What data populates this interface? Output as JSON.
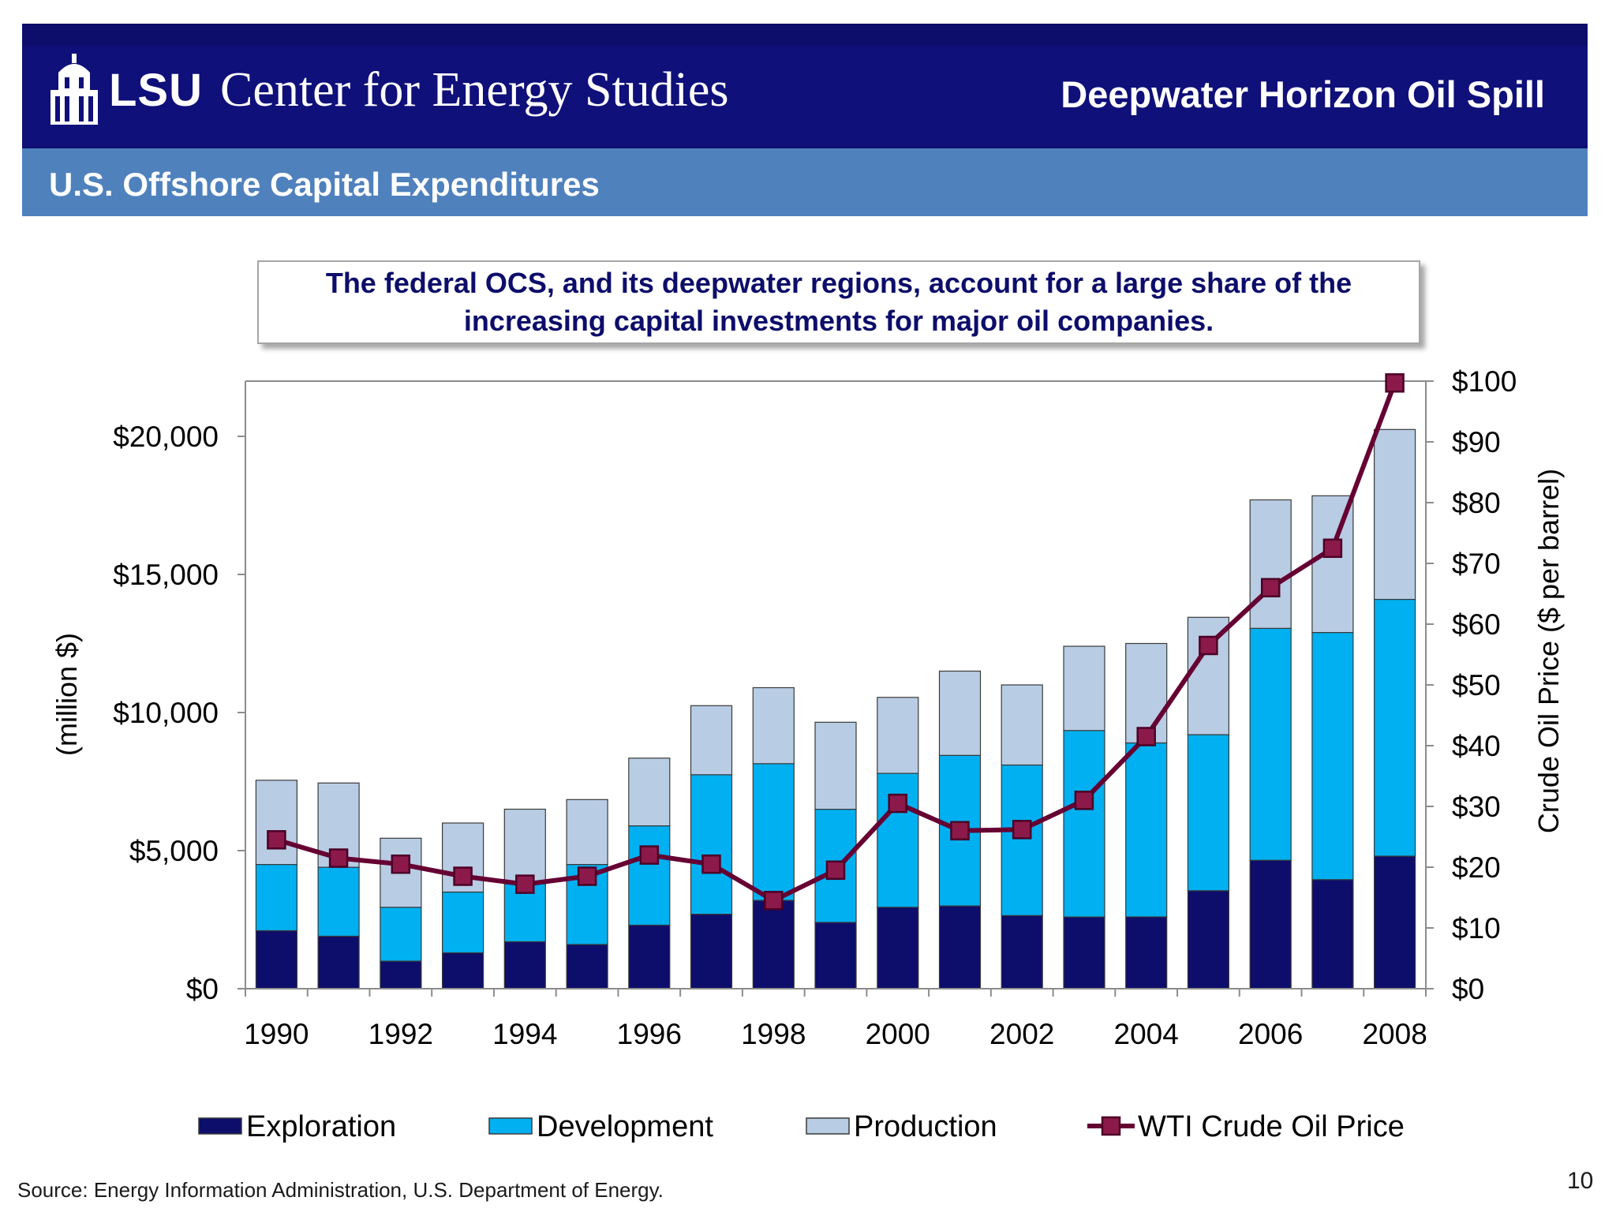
{
  "header": {
    "logo_lsu": "LSU",
    "logo_center": "Center for Energy Studies",
    "deck_title": "Deepwater Horizon Oil Spill",
    "section_title": "U.S. Offshore Capital Expenditures",
    "band_color": "#10107a",
    "subtitle_bar_color": "#4f81bd"
  },
  "callout": {
    "text": "The federal OCS, and its deepwater regions, account for a large share of the increasing capital investments for major oil companies."
  },
  "footer": {
    "source": "Source:  Energy Information Administration, U.S. Department of Energy.",
    "page_number": "10"
  },
  "chart_data": {
    "type": "bar",
    "stacked": true,
    "categories": [
      "1990",
      "1991",
      "1992",
      "1993",
      "1994",
      "1995",
      "1996",
      "1997",
      "1998",
      "1999",
      "2000",
      "2001",
      "2002",
      "2003",
      "2004",
      "2005",
      "2006",
      "2007",
      "2008"
    ],
    "x_tick_labels": [
      "1990",
      "1992",
      "1994",
      "1996",
      "1998",
      "2000",
      "2002",
      "2004",
      "2006",
      "2008"
    ],
    "series": [
      {
        "name": "Exploration",
        "color": "#0d0d6b",
        "axis": "left",
        "values": [
          2100,
          1900,
          1000,
          1300,
          1700,
          1600,
          2300,
          2700,
          3200,
          2400,
          2950,
          3000,
          2650,
          2600,
          2600,
          3550,
          4650,
          3950,
          4800
        ]
      },
      {
        "name": "Development",
        "color": "#00b0f0",
        "axis": "left",
        "values": [
          2400,
          2500,
          1950,
          2200,
          2100,
          2900,
          3600,
          5050,
          4950,
          4100,
          4850,
          5450,
          5450,
          6750,
          6300,
          5650,
          8400,
          8950,
          9300
        ]
      },
      {
        "name": "Production",
        "color": "#b8cce4",
        "axis": "left",
        "values": [
          3050,
          3050,
          2500,
          2500,
          2700,
          2350,
          2450,
          2500,
          2750,
          3150,
          2750,
          3050,
          2900,
          3050,
          3600,
          4250,
          4650,
          4950,
          6150
        ]
      },
      {
        "name": "WTI Crude Oil Price",
        "type": "line",
        "color": "#660033",
        "axis": "right",
        "values": [
          24.5,
          21.5,
          20.5,
          18.5,
          17.2,
          18.5,
          22.0,
          20.5,
          14.5,
          19.5,
          30.5,
          26.0,
          26.2,
          31.0,
          41.5,
          56.5,
          66.0,
          72.5,
          99.7
        ]
      }
    ],
    "y_left": {
      "label": "(million $)",
      "ticks": [
        "$0",
        "$5,000",
        "$10,000",
        "$15,000",
        "$20,000"
      ],
      "tick_values": [
        0,
        5000,
        10000,
        15000,
        20000
      ],
      "ylim": [
        0,
        22000
      ]
    },
    "y_right": {
      "label": "Crude Oil Price ($ per barrel)",
      "ticks": [
        "$0",
        "$10",
        "$20",
        "$30",
        "$40",
        "$50",
        "$60",
        "$70",
        "$80",
        "$90",
        "$100"
      ],
      "tick_values": [
        0,
        10,
        20,
        30,
        40,
        50,
        60,
        70,
        80,
        90,
        100
      ],
      "ylim": [
        0,
        100
      ]
    },
    "grid": false,
    "legend_position": "bottom"
  }
}
